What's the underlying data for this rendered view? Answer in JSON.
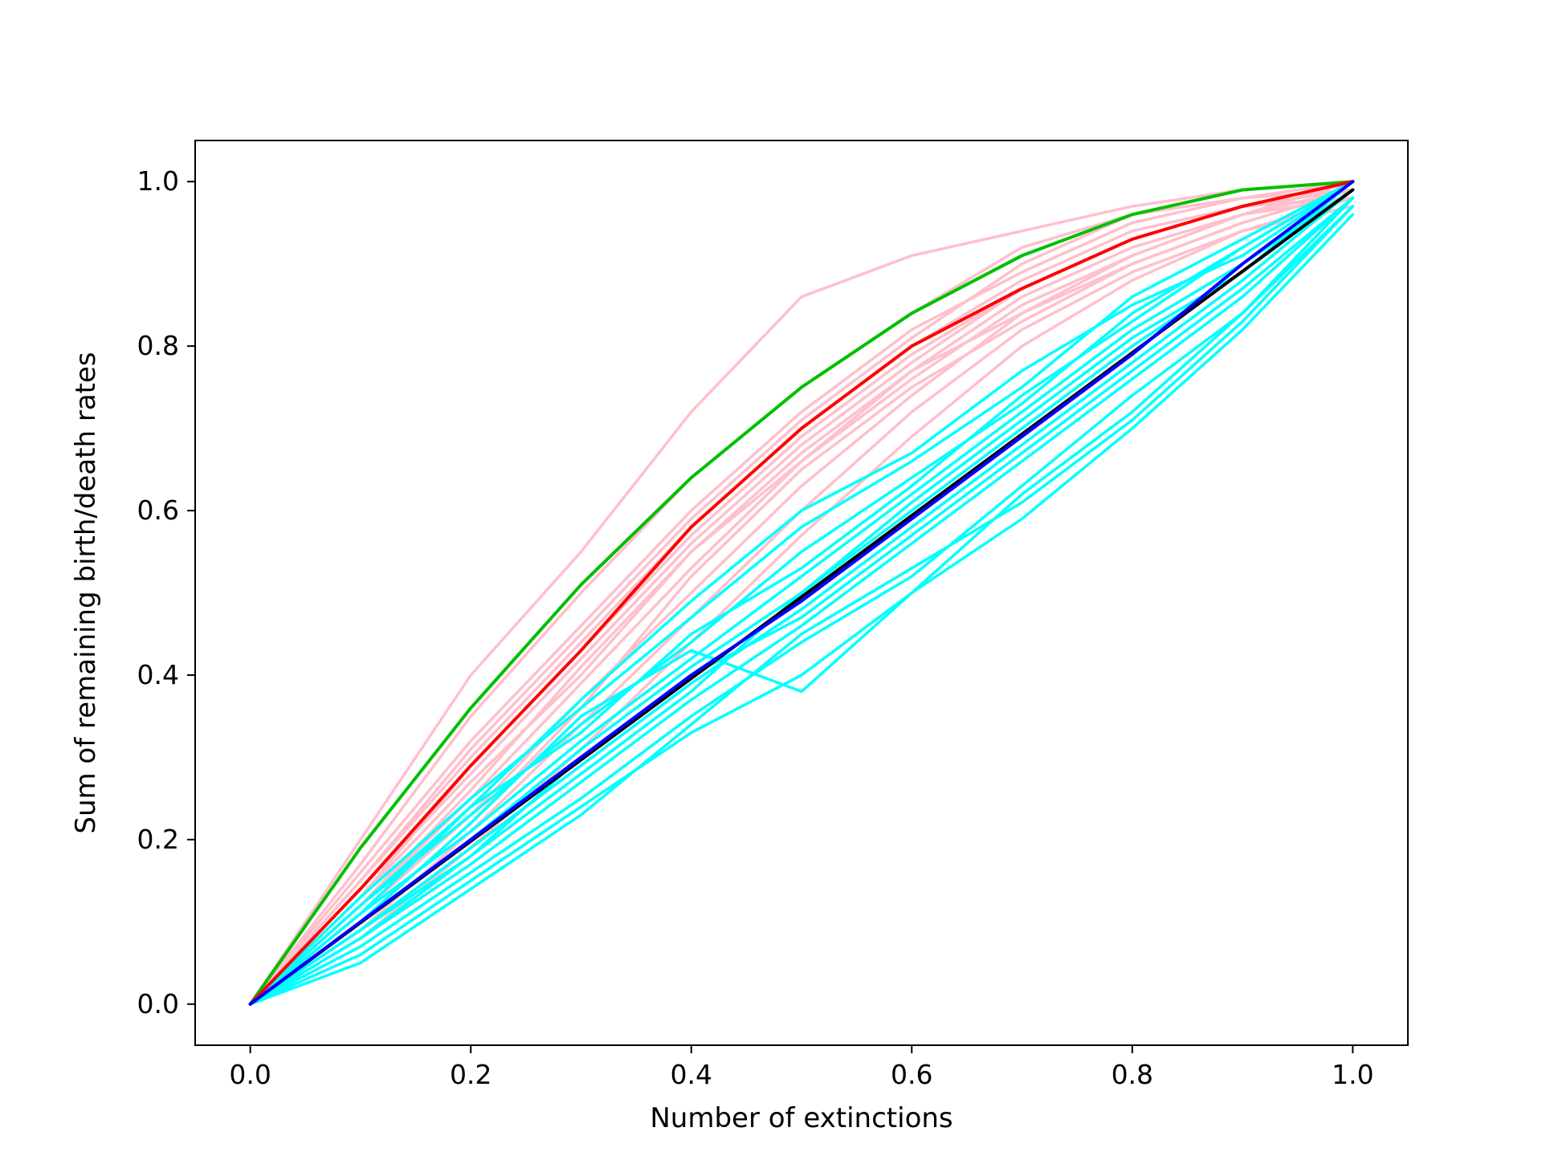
{
  "chart_data": {
    "type": "line",
    "title": "",
    "xlabel": "Number of extinctions",
    "ylabel": "Sum of remaining birth/death rates",
    "xlim": [
      -0.05,
      1.05
    ],
    "ylim": [
      -0.05,
      1.05
    ],
    "xticks": [
      "0.0",
      "0.2",
      "0.4",
      "0.6",
      "0.8",
      "1.0"
    ],
    "yticks": [
      "0.0",
      "0.2",
      "0.4",
      "0.6",
      "0.8",
      "1.0"
    ],
    "grid": false,
    "legend": "none",
    "series": [
      {
        "color": "#00bf00",
        "description": "green curve",
        "x": [
          0.0,
          0.1,
          0.2,
          0.3,
          0.4,
          0.5,
          0.6,
          0.7,
          0.8,
          0.9,
          1.0
        ],
        "y": [
          0.0,
          0.19,
          0.36,
          0.51,
          0.64,
          0.75,
          0.84,
          0.91,
          0.96,
          0.99,
          1.0
        ]
      },
      {
        "color": "#ff0000",
        "description": "red curve",
        "x": [
          0.0,
          0.1,
          0.2,
          0.3,
          0.4,
          0.5,
          0.6,
          0.7,
          0.8,
          0.9,
          1.0
        ],
        "y": [
          0.0,
          0.14,
          0.29,
          0.43,
          0.58,
          0.7,
          0.8,
          0.87,
          0.93,
          0.97,
          1.0
        ]
      },
      {
        "color": "#000000",
        "description": "black line",
        "x": [
          0.0,
          0.5,
          1.0
        ],
        "y": [
          0.0,
          0.495,
          0.99
        ]
      },
      {
        "color": "#0000ff",
        "description": "blue line",
        "x": [
          0.0,
          0.1,
          0.2,
          0.3,
          0.4,
          0.5,
          0.6,
          0.7,
          0.8,
          0.9,
          1.0
        ],
        "y": [
          0.0,
          0.1,
          0.2,
          0.3,
          0.4,
          0.49,
          0.59,
          0.69,
          0.79,
          0.9,
          1.0
        ]
      }
    ],
    "ensembles": [
      {
        "color": "#ffc0cb",
        "description": "pink simulation curves",
        "x": [
          0.0,
          0.1,
          0.2,
          0.3,
          0.4,
          0.5,
          0.6,
          0.7,
          0.8,
          0.9,
          1.0
        ],
        "runs": [
          [
            0.0,
            0.2,
            0.4,
            0.55,
            0.72,
            0.86,
            0.91,
            0.94,
            0.97,
            0.99,
            1.0
          ],
          [
            0.0,
            0.17,
            0.35,
            0.5,
            0.64,
            0.75,
            0.84,
            0.92,
            0.96,
            0.98,
            1.0
          ],
          [
            0.0,
            0.16,
            0.32,
            0.46,
            0.6,
            0.72,
            0.82,
            0.89,
            0.95,
            0.98,
            0.99
          ],
          [
            0.0,
            0.15,
            0.3,
            0.44,
            0.58,
            0.7,
            0.8,
            0.88,
            0.94,
            0.97,
            1.0
          ],
          [
            0.0,
            0.14,
            0.28,
            0.42,
            0.56,
            0.68,
            0.78,
            0.87,
            0.93,
            0.97,
            0.99
          ],
          [
            0.0,
            0.13,
            0.27,
            0.4,
            0.55,
            0.67,
            0.77,
            0.86,
            0.92,
            0.96,
            1.0
          ],
          [
            0.0,
            0.12,
            0.25,
            0.39,
            0.53,
            0.66,
            0.76,
            0.85,
            0.91,
            0.96,
            0.98
          ],
          [
            0.0,
            0.11,
            0.23,
            0.37,
            0.5,
            0.63,
            0.74,
            0.84,
            0.9,
            0.95,
            0.99
          ],
          [
            0.0,
            0.09,
            0.21,
            0.34,
            0.47,
            0.6,
            0.72,
            0.82,
            0.89,
            0.94,
            0.98
          ],
          [
            0.0,
            0.08,
            0.19,
            0.31,
            0.44,
            0.57,
            0.69,
            0.8,
            0.88,
            0.94,
            0.97
          ],
          [
            0.0,
            0.12,
            0.26,
            0.41,
            0.55,
            0.66,
            0.77,
            0.84,
            0.91,
            0.96,
            0.99
          ],
          [
            0.0,
            0.15,
            0.31,
            0.45,
            0.59,
            0.71,
            0.81,
            0.9,
            0.96,
            0.99,
            1.0
          ],
          [
            0.0,
            0.1,
            0.22,
            0.36,
            0.52,
            0.65,
            0.75,
            0.83,
            0.9,
            0.95,
            0.99
          ],
          [
            0.0,
            0.13,
            0.29,
            0.43,
            0.57,
            0.69,
            0.79,
            0.87,
            0.93,
            0.97,
            0.98
          ]
        ]
      },
      {
        "color": "#00ffff",
        "description": "cyan simulation curves",
        "x": [
          0.0,
          0.1,
          0.2,
          0.3,
          0.4,
          0.5,
          0.6,
          0.7,
          0.8,
          0.9,
          1.0
        ],
        "runs": [
          [
            0.0,
            0.13,
            0.25,
            0.36,
            0.47,
            0.58,
            0.66,
            0.75,
            0.86,
            0.93,
            1.0
          ],
          [
            0.0,
            0.12,
            0.23,
            0.34,
            0.44,
            0.55,
            0.64,
            0.73,
            0.84,
            0.92,
            1.0
          ],
          [
            0.0,
            0.11,
            0.21,
            0.32,
            0.42,
            0.52,
            0.62,
            0.72,
            0.82,
            0.9,
            0.99
          ],
          [
            0.0,
            0.1,
            0.2,
            0.31,
            0.41,
            0.5,
            0.6,
            0.7,
            0.8,
            0.89,
            1.0
          ],
          [
            0.0,
            0.09,
            0.19,
            0.29,
            0.39,
            0.48,
            0.58,
            0.68,
            0.78,
            0.88,
            0.99
          ],
          [
            0.0,
            0.08,
            0.17,
            0.27,
            0.37,
            0.46,
            0.56,
            0.66,
            0.76,
            0.86,
            0.98
          ],
          [
            0.0,
            0.07,
            0.16,
            0.25,
            0.35,
            0.44,
            0.52,
            0.63,
            0.74,
            0.84,
            0.97
          ],
          [
            0.0,
            0.06,
            0.15,
            0.24,
            0.33,
            0.4,
            0.5,
            0.59,
            0.7,
            0.82,
            0.96
          ],
          [
            0.0,
            0.1,
            0.22,
            0.35,
            0.43,
            0.38,
            0.5,
            0.62,
            0.72,
            0.84,
            0.98
          ],
          [
            0.0,
            0.11,
            0.24,
            0.37,
            0.49,
            0.6,
            0.67,
            0.77,
            0.85,
            0.91,
            1.0
          ],
          [
            0.0,
            0.09,
            0.18,
            0.28,
            0.38,
            0.5,
            0.61,
            0.71,
            0.81,
            0.89,
            0.99
          ],
          [
            0.0,
            0.12,
            0.24,
            0.33,
            0.45,
            0.53,
            0.63,
            0.74,
            0.83,
            0.92,
            1.0
          ],
          [
            0.0,
            0.08,
            0.18,
            0.3,
            0.4,
            0.47,
            0.57,
            0.67,
            0.77,
            0.87,
            0.98
          ],
          [
            0.0,
            0.05,
            0.14,
            0.23,
            0.34,
            0.45,
            0.53,
            0.61,
            0.71,
            0.83,
            0.97
          ]
        ]
      }
    ]
  }
}
